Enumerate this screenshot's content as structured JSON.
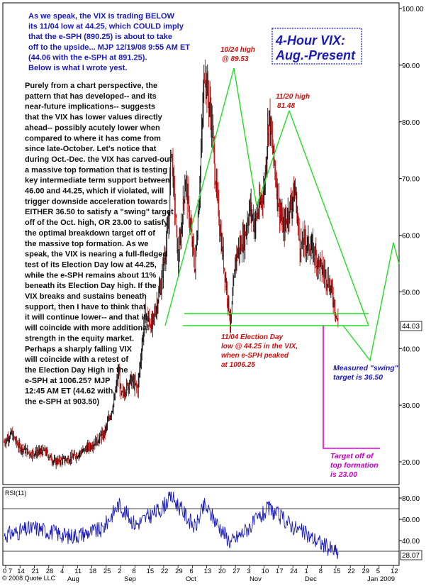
{
  "header": {
    "blue_lines": [
      "As we speak, the VIX is trading BELOW",
      "its 11/04 low at 44.25, which COULD imply",
      "that the e-SPH (890.25) is about to take",
      "off to the upside...  MJP 12/19/08 9:55 AM ET",
      "(44.06  with  the e-SPH at 891.25).",
      "Below is what I wrote yest."
    ],
    "black_lines": [
      "Purely from a chart perspective,  the",
      "pattern that has developed-- and its",
      "near-future implications-- suggests",
      "that the VIX has lower values directly",
      "ahead-- possibly acutely lower when",
      "compared to where it has come from",
      "since late-October. Let's notice that",
      "during Oct.-Dec. the VIX has carved-out",
      "a massive top formation that is testing",
      "key intermediate term support between",
      "46.00 and 44.25, which if violated, will",
      "trigger downside acceleration towards",
      "EITHER 36.50 to satisfy a \"swing\" target",
      "off of the Oct. high, OR 23.00 to satisfy",
      "the optimal breakdown target off of",
      "the massive top formation. As we",
      "speak, the VIX is nearing a full-fledged",
      "test of its Election Day low at 44.25,",
      "while the e-SPH remains about 11%",
      "beneath its Election Day high. If the",
      "VIX breaks and sustains beneath",
      "support, then I have to think that",
      "it will continue lower-- and that it",
      "will coincide with more additional",
      "strength in the equity market.",
      "Perhaps a sharply falling VIX",
      "will coincide with a retest of",
      "the Election Day High in the",
      "e-SPH at 1006.25? MJP",
      "12:45 AM ET (44.62 with",
      "the e-SPH at 903.50)"
    ],
    "title_lines": [
      "4-Hour VIX:",
      "Aug.-Present"
    ]
  },
  "annotations": {
    "oct_high": [
      "10/24 high",
      "@ 89.53"
    ],
    "nov_high": [
      "11/20 high",
      "81.48"
    ],
    "election_low": [
      "11/04 Election Day",
      "low @ 44.25 in the VIX,",
      "when e-SPH peaked",
      "at 1006.25"
    ],
    "swing_target": [
      "Measured \"swing\"",
      "target is 36.50"
    ],
    "top_target": [
      "Target off of",
      "top formation",
      "is 23.00"
    ]
  },
  "footer": {
    "copyright": "© 2008 Quote LLC",
    "x_labels": [
      "0 7",
      "14",
      "21",
      "28",
      "4",
      "11",
      "18",
      "25",
      "2",
      "8",
      "15",
      "22",
      "29",
      "6",
      "13",
      "20",
      "27",
      "3",
      "10",
      "17",
      "24",
      "1",
      "8",
      "15",
      "22",
      "29",
      "5",
      "12"
    ],
    "month_labels": [
      "Aug",
      "Sep",
      "Oct",
      "Nov",
      "Dec",
      "Jan 2009"
    ]
  },
  "rsi": {
    "label": "RSI(11)",
    "ticks": [
      "80.00",
      "60.00",
      "40.00"
    ],
    "current": "28.07"
  },
  "chart_data": {
    "type": "bar",
    "subtype": "ohlc",
    "title": "4-Hour VIX: Aug.-Present",
    "y_axis": {
      "ticks": [
        100,
        90,
        80,
        70,
        60,
        50,
        40,
        30,
        20
      ],
      "ylim": [
        16,
        101
      ]
    },
    "current_price": "44.03",
    "x_dates": [
      "2008-08-01",
      "2008-08-07",
      "2008-08-14",
      "2008-08-21",
      "2008-08-28",
      "2008-09-04",
      "2008-09-11",
      "2008-09-18",
      "2008-09-25",
      "2008-10-02",
      "2008-10-08",
      "2008-10-15",
      "2008-10-22",
      "2008-10-29",
      "2008-11-06",
      "2008-11-13",
      "2008-11-20",
      "2008-11-27",
      "2008-12-03",
      "2008-12-10",
      "2008-12-17",
      "2008-12-22"
    ],
    "price_path": [
      {
        "date": "2008-08-01",
        "value": 23.5
      },
      {
        "date": "2008-08-04",
        "value": 25.0
      },
      {
        "date": "2008-08-07",
        "value": 22.8
      },
      {
        "date": "2008-08-12",
        "value": 21.5
      },
      {
        "date": "2008-08-18",
        "value": 21.9
      },
      {
        "date": "2008-08-22",
        "value": 20.0
      },
      {
        "date": "2008-08-28",
        "value": 20.5
      },
      {
        "date": "2008-09-02",
        "value": 21.6
      },
      {
        "date": "2008-09-08",
        "value": 23.4
      },
      {
        "date": "2008-09-12",
        "value": 25.0
      },
      {
        "date": "2008-09-16",
        "value": 30.5
      },
      {
        "date": "2008-09-18",
        "value": 36.0
      },
      {
        "date": "2008-09-19",
        "value": 31.5
      },
      {
        "date": "2008-09-23",
        "value": 34.5
      },
      {
        "date": "2008-09-26",
        "value": 33.0
      },
      {
        "date": "2008-09-29",
        "value": 46.0
      },
      {
        "date": "2008-10-02",
        "value": 44.0
      },
      {
        "date": "2008-10-06",
        "value": 52.0
      },
      {
        "date": "2008-10-09",
        "value": 62.0
      },
      {
        "date": "2008-10-10",
        "value": 76.0
      },
      {
        "date": "2008-10-13",
        "value": 55.0
      },
      {
        "date": "2008-10-16",
        "value": 70.0
      },
      {
        "date": "2008-10-20",
        "value": 54.0
      },
      {
        "date": "2008-10-22",
        "value": 69.0
      },
      {
        "date": "2008-10-24",
        "value": 89.53
      },
      {
        "date": "2008-10-27",
        "value": 80.0
      },
      {
        "date": "2008-10-29",
        "value": 68.0
      },
      {
        "date": "2008-10-31",
        "value": 59.0
      },
      {
        "date": "2008-11-04",
        "value": 44.25
      },
      {
        "date": "2008-11-06",
        "value": 56.0
      },
      {
        "date": "2008-11-10",
        "value": 60.0
      },
      {
        "date": "2008-11-12",
        "value": 65.0
      },
      {
        "date": "2008-11-14",
        "value": 62.0
      },
      {
        "date": "2008-11-18",
        "value": 68.0
      },
      {
        "date": "2008-11-20",
        "value": 81.48
      },
      {
        "date": "2008-11-24",
        "value": 66.0
      },
      {
        "date": "2008-11-26",
        "value": 61.0
      },
      {
        "date": "2008-12-01",
        "value": 68.0
      },
      {
        "date": "2008-12-03",
        "value": 58.0
      },
      {
        "date": "2008-12-05",
        "value": 59.0
      },
      {
        "date": "2008-12-09",
        "value": 57.0
      },
      {
        "date": "2008-12-11",
        "value": 55.0
      },
      {
        "date": "2008-12-15",
        "value": 52.0
      },
      {
        "date": "2008-12-17",
        "value": 49.0
      },
      {
        "date": "2008-12-19",
        "value": 44.03
      }
    ],
    "support_lines": [
      46.0,
      44.25
    ],
    "swing_target": 36.5,
    "top_formation_target": 23.0,
    "rsi_series": [
      {
        "date": "2008-08-01",
        "value": 45
      },
      {
        "date": "2008-08-14",
        "value": 52
      },
      {
        "date": "2008-08-28",
        "value": 44
      },
      {
        "date": "2008-09-11",
        "value": 50
      },
      {
        "date": "2008-09-18",
        "value": 74
      },
      {
        "date": "2008-09-25",
        "value": 55
      },
      {
        "date": "2008-10-06",
        "value": 70
      },
      {
        "date": "2008-10-10",
        "value": 82
      },
      {
        "date": "2008-10-20",
        "value": 52
      },
      {
        "date": "2008-10-24",
        "value": 73
      },
      {
        "date": "2008-11-04",
        "value": 38
      },
      {
        "date": "2008-11-13",
        "value": 55
      },
      {
        "date": "2008-11-20",
        "value": 70
      },
      {
        "date": "2008-12-01",
        "value": 52
      },
      {
        "date": "2008-12-10",
        "value": 40
      },
      {
        "date": "2008-12-19",
        "value": 28.07
      }
    ]
  }
}
